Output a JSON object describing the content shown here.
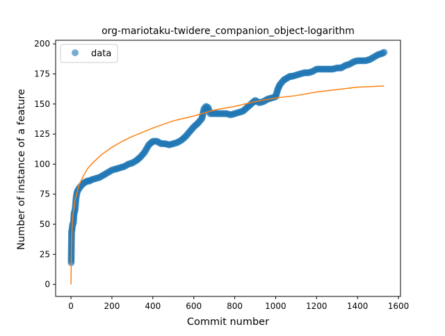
{
  "chart_data": {
    "type": "scatter",
    "title": "org-mariotaku-twidere_companion_object-logarithm",
    "xlabel": "Commit number",
    "ylabel": "Number of instance of a feature",
    "xlim": [
      -75,
      1610
    ],
    "ylim": [
      -10,
      203
    ],
    "xticks": [
      0,
      200,
      400,
      600,
      800,
      1000,
      1200,
      1400,
      1600
    ],
    "yticks": [
      0,
      25,
      50,
      75,
      100,
      125,
      150,
      175,
      200
    ],
    "grid": false,
    "legend": {
      "placement": "top-left",
      "entries": [
        "data"
      ]
    },
    "colors": {
      "data": "#1f77b4",
      "fit": "#ff7f0e"
    },
    "series": [
      {
        "name": "data",
        "kind": "scatter",
        "x": [
          1,
          3,
          5,
          8,
          12,
          15,
          20,
          25,
          30,
          40,
          50,
          60,
          70,
          80,
          90,
          100,
          120,
          140,
          160,
          180,
          200,
          220,
          240,
          260,
          280,
          300,
          320,
          340,
          360,
          380,
          400,
          420,
          440,
          460,
          480,
          500,
          520,
          540,
          560,
          580,
          600,
          620,
          640,
          650,
          660,
          670,
          680,
          700,
          720,
          740,
          760,
          780,
          800,
          820,
          840,
          860,
          880,
          900,
          920,
          940,
          960,
          980,
          1000,
          1010,
          1020,
          1030,
          1040,
          1050,
          1060,
          1070,
          1080,
          1100,
          1120,
          1140,
          1160,
          1180,
          1200,
          1220,
          1240,
          1260,
          1280,
          1300,
          1320,
          1340,
          1360,
          1380,
          1400,
          1420,
          1440,
          1460,
          1480,
          1500,
          1520,
          1530
        ],
        "y": [
          18,
          44,
          45,
          50,
          51,
          59,
          62,
          72,
          77,
          80,
          82,
          84,
          85,
          86,
          86,
          87,
          88,
          89,
          91,
          93,
          95,
          96,
          97,
          98,
          100,
          101,
          103,
          106,
          110,
          116,
          119,
          119,
          117,
          117,
          116,
          117,
          118,
          120,
          123,
          127,
          131,
          134,
          138,
          146,
          148,
          147,
          142,
          142,
          142,
          142,
          142,
          141,
          142,
          143,
          144,
          147,
          150,
          153,
          151,
          152,
          154,
          155,
          156,
          162,
          166,
          168,
          170,
          171,
          172,
          173,
          173,
          174,
          175,
          176,
          176,
          177,
          179,
          179,
          179,
          179,
          179,
          180,
          180,
          182,
          183,
          185,
          186,
          186,
          186,
          187,
          189,
          191,
          192,
          193
        ]
      },
      {
        "name": "",
        "kind": "line",
        "x": [
          0,
          2,
          5,
          10,
          20,
          40,
          60,
          80,
          100,
          150,
          200,
          250,
          300,
          400,
          500,
          600,
          700,
          800,
          900,
          1000,
          1100,
          1200,
          1300,
          1400,
          1530
        ],
        "y": [
          0,
          29,
          46,
          58,
          70,
          83,
          90,
          96,
          100,
          108,
          114,
          119,
          123,
          130,
          136,
          140,
          145,
          148,
          152,
          155,
          157,
          160,
          162,
          164,
          165
        ]
      }
    ]
  }
}
